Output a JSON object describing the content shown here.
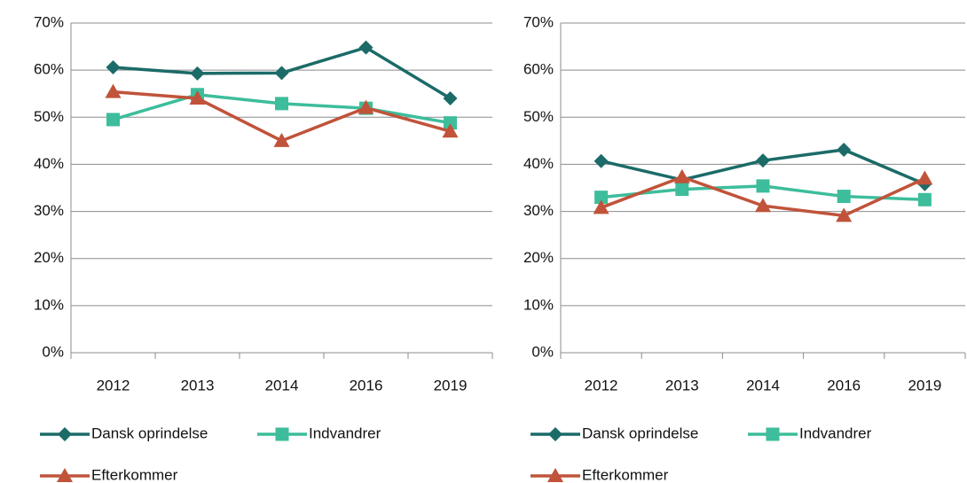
{
  "chart_data": [
    {
      "type": "line",
      "categories": [
        "2012",
        "2013",
        "2014",
        "2016",
        "2019"
      ],
      "series": [
        {
          "name": "Dansk oprindelse",
          "color": "#1b6b68",
          "marker": "diamond",
          "values": [
            60.6,
            59.3,
            59.4,
            64.8,
            54.0
          ]
        },
        {
          "name": "Indvandrer",
          "color": "#3dbd9b",
          "marker": "square",
          "values": [
            49.5,
            54.8,
            52.9,
            51.9,
            48.8
          ]
        },
        {
          "name": "Efterkommer",
          "color": "#c0533a",
          "marker": "triangle",
          "values": [
            55.4,
            54.0,
            45.0,
            52.0,
            47.0
          ]
        }
      ],
      "ylim": [
        0,
        70
      ],
      "yticks": [
        {
          "value": 0,
          "label": "0%"
        },
        {
          "value": 10,
          "label": "10%"
        },
        {
          "value": 20,
          "label": "20%"
        },
        {
          "value": 30,
          "label": "30%"
        },
        {
          "value": 40,
          "label": "40%"
        },
        {
          "value": 50,
          "label": "50%"
        },
        {
          "value": 60,
          "label": "60%"
        },
        {
          "value": 70,
          "label": "70%"
        }
      ],
      "grid": true,
      "legend": "bottom"
    },
    {
      "type": "line",
      "categories": [
        "2012",
        "2013",
        "2014",
        "2016",
        "2019"
      ],
      "series": [
        {
          "name": "Dansk oprindelse",
          "color": "#1b6b68",
          "marker": "diamond",
          "values": [
            40.7,
            36.7,
            40.8,
            43.1,
            35.8
          ]
        },
        {
          "name": "Indvandrer",
          "color": "#3dbd9b",
          "marker": "square",
          "values": [
            33.0,
            34.7,
            35.4,
            33.2,
            32.5
          ]
        },
        {
          "name": "Efterkommer",
          "color": "#c0533a",
          "marker": "triangle",
          "values": [
            30.8,
            37.3,
            31.2,
            29.1,
            37.0
          ]
        }
      ],
      "ylim": [
        0,
        70
      ],
      "yticks": [
        {
          "value": 0,
          "label": "0%"
        },
        {
          "value": 10,
          "label": "10%"
        },
        {
          "value": 20,
          "label": "20%"
        },
        {
          "value": 30,
          "label": "30%"
        },
        {
          "value": 40,
          "label": "40%"
        },
        {
          "value": 50,
          "label": "50%"
        },
        {
          "value": 60,
          "label": "60%"
        },
        {
          "value": 70,
          "label": "70%"
        }
      ],
      "grid": true,
      "legend": "bottom"
    }
  ]
}
